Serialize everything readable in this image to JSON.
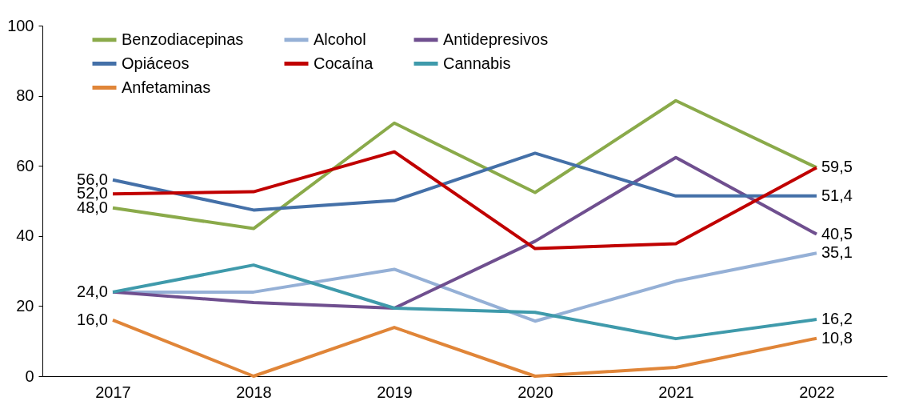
{
  "chart_data": {
    "type": "line",
    "categories": [
      "2017",
      "2018",
      "2019",
      "2020",
      "2021",
      "2022"
    ],
    "ylim": [
      0,
      100
    ],
    "yticks": [
      0,
      20,
      40,
      60,
      80,
      100
    ],
    "grid": false,
    "legend": "top",
    "marker": "none",
    "line_style": "solid",
    "series": [
      {
        "name": "Benzodiacepinas",
        "color": "#8aaa4a",
        "values": [
          48.0,
          42.1,
          72.2,
          52.4,
          78.6,
          59.5
        ],
        "value_labels": [
          "48,0",
          null,
          null,
          null,
          null,
          null
        ]
      },
      {
        "name": "Alcohol",
        "color": "#95b0d6",
        "values": [
          24.0,
          24.0,
          30.5,
          15.7,
          27.1,
          35.1
        ],
        "value_labels": [
          null,
          null,
          null,
          null,
          null,
          "35,1"
        ]
      },
      {
        "name": "Antidepresivos",
        "color": "#6f4f8f",
        "values": [
          24.0,
          21.0,
          19.4,
          38.5,
          62.4,
          40.5
        ],
        "value_labels": [
          null,
          null,
          null,
          null,
          null,
          "40,5"
        ]
      },
      {
        "name": "Opiáceos",
        "color": "#4470a8",
        "values": [
          56.0,
          47.4,
          50.1,
          63.6,
          51.4,
          51.4
        ],
        "value_labels": [
          "56,0",
          null,
          null,
          null,
          null,
          "51,4"
        ]
      },
      {
        "name": "Cocaína",
        "color": "#c00000",
        "values": [
          52.0,
          52.6,
          64.0,
          36.4,
          37.8,
          59.5
        ],
        "value_labels": [
          "52,0",
          null,
          null,
          null,
          null,
          "59,5"
        ]
      },
      {
        "name": "Cannabis",
        "color": "#3f9aab",
        "values": [
          24.0,
          31.7,
          19.4,
          18.2,
          10.7,
          16.2
        ],
        "value_labels": [
          "24,0",
          null,
          null,
          null,
          null,
          "16,2"
        ]
      },
      {
        "name": "Anfetaminas",
        "color": "#e08538",
        "values": [
          16.0,
          0,
          13.9,
          0,
          2.5,
          10.8
        ],
        "value_labels": [
          "16,0",
          null,
          null,
          null,
          null,
          "10,8"
        ]
      }
    ]
  }
}
